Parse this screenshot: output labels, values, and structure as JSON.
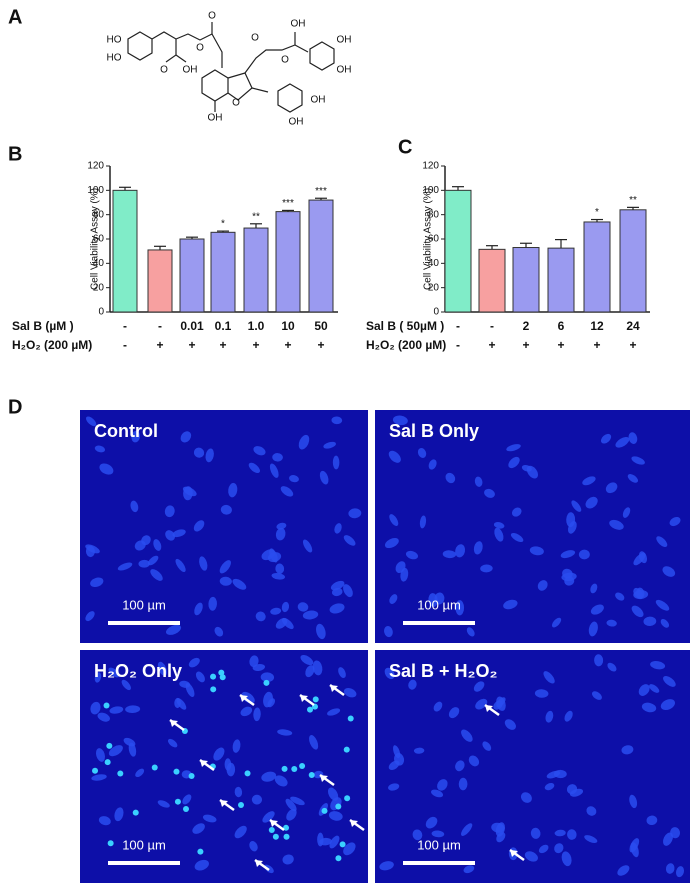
{
  "panel_labels": [
    "A",
    "B",
    "C",
    "D"
  ],
  "structure_atoms": [
    "HO",
    "HO",
    "O",
    "O",
    "O",
    "OH",
    "O",
    "O",
    "OH",
    "O",
    "OH",
    "OH",
    "OH",
    "OH",
    "OH"
  ],
  "chart_data": [
    {
      "type": "bar",
      "ylabel": "Cell Viability Assay (%)",
      "ylim": [
        0,
        120
      ],
      "yticks": [
        0,
        20,
        40,
        60,
        80,
        100,
        120
      ],
      "category_label": "Sal B (µM )",
      "categories": [
        "-",
        "-",
        "0.01",
        "0.1",
        "1.0",
        "10",
        "50"
      ],
      "h2o2_label": "H₂O₂ (200 µM)",
      "h2o2": [
        "-",
        "+",
        "+",
        "+",
        "+",
        "+",
        "+"
      ],
      "values": [
        100,
        51,
        60,
        65.5,
        69,
        82.5,
        92
      ],
      "errors": [
        2.5,
        3,
        1.5,
        1,
        3.5,
        1,
        1.5
      ],
      "significance": [
        null,
        null,
        null,
        "*",
        "**",
        "***",
        "***"
      ],
      "colors": [
        "#80ecc8",
        "#f7a0a0",
        "#9a9af0",
        "#9a9af0",
        "#9a9af0",
        "#9a9af0",
        "#9a9af0"
      ]
    },
    {
      "type": "bar",
      "ylabel": "Cell Viability Assay (%)",
      "ylim": [
        0,
        120
      ],
      "yticks": [
        0,
        20,
        40,
        60,
        80,
        100,
        120
      ],
      "category_label": "Sal B ( 50µM )",
      "categories": [
        "-",
        "-",
        "2",
        "6",
        "12",
        "24"
      ],
      "h2o2_label": "H₂O₂ (200 µM)",
      "h2o2": [
        "-",
        "+",
        "+",
        "+",
        "+",
        "+"
      ],
      "values": [
        100,
        51.5,
        53,
        52.5,
        74,
        84
      ],
      "errors": [
        3,
        3,
        3.5,
        7,
        2,
        2
      ],
      "significance": [
        null,
        null,
        null,
        null,
        "*",
        "**"
      ],
      "colors": [
        "#80ecc8",
        "#f7a0a0",
        "#9a9af0",
        "#9a9af0",
        "#9a9af0",
        "#9a9af0"
      ]
    }
  ],
  "micrographs": [
    {
      "label": "Control",
      "scale_bar": "100 µm"
    },
    {
      "label": "Sal B Only",
      "scale_bar": "100 µm"
    },
    {
      "label": "H₂O₂ Only",
      "scale_bar": "100 µm"
    },
    {
      "label": "Sal B + H₂O₂",
      "scale_bar": "100 µm"
    }
  ]
}
